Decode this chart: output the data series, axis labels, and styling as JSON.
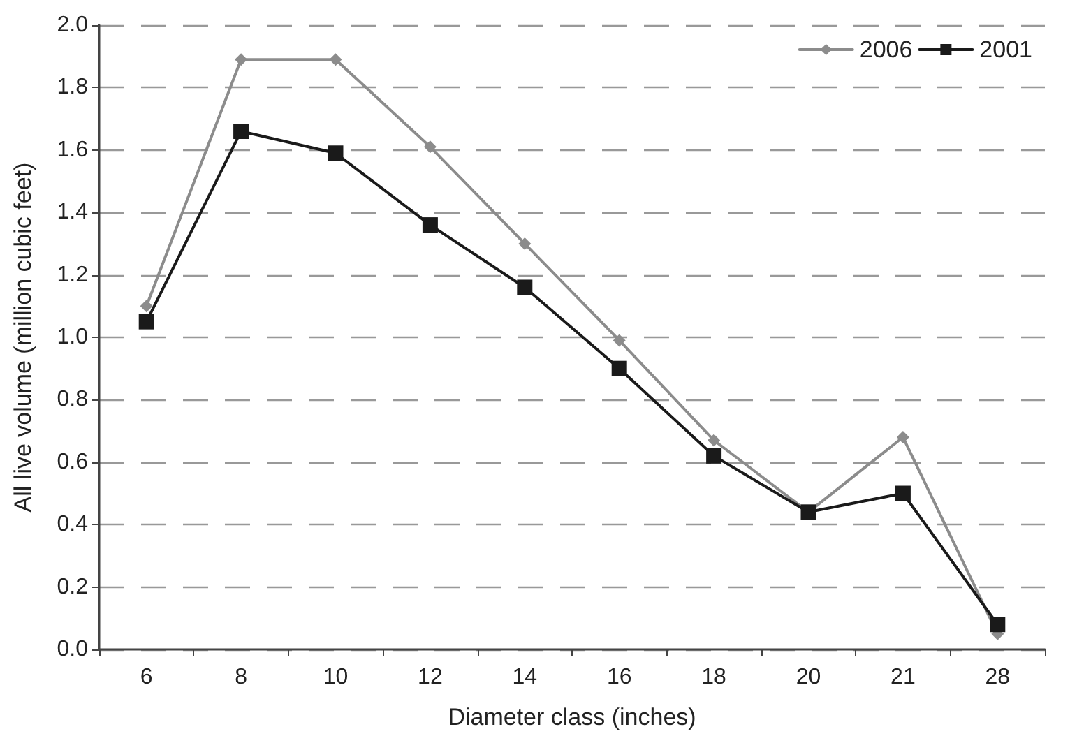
{
  "chart_data": {
    "type": "line",
    "xlabel": "Diameter class (inches)",
    "ylabel": "All live volume (million cubic feet)",
    "categories": [
      "6",
      "8",
      "10",
      "12",
      "14",
      "16",
      "18",
      "20",
      "21",
      "28"
    ],
    "series": [
      {
        "name": "2006",
        "color": "#8c8c8c",
        "marker": "diamond",
        "values": [
          1.1,
          1.89,
          1.89,
          1.61,
          1.3,
          0.99,
          0.67,
          0.44,
          0.68,
          0.05
        ]
      },
      {
        "name": "2001",
        "color": "#1a1a1a",
        "marker": "square",
        "values": [
          1.05,
          1.66,
          1.59,
          1.36,
          1.16,
          0.9,
          0.62,
          0.44,
          0.5,
          0.08
        ]
      }
    ],
    "ylim": [
      0,
      2
    ],
    "yticks": [
      {
        "value": 0,
        "label": "0.0"
      },
      {
        "value": 0.2,
        "label": "0.2"
      },
      {
        "value": 0.4,
        "label": "0.4"
      },
      {
        "value": 0.6,
        "label": "0.6"
      },
      {
        "value": 0.8,
        "label": "0.8"
      },
      {
        "value": 1,
        "label": "1.0"
      },
      {
        "value": 1.2,
        "label": "1.2"
      },
      {
        "value": 1.4,
        "label": "1.4"
      },
      {
        "value": 1.6,
        "label": "1.6"
      },
      {
        "value": 1.8,
        "label": "1.8"
      },
      {
        "value": 2,
        "label": "2.0"
      }
    ],
    "grid": "y",
    "legend": "top right",
    "line_style": "solid"
  }
}
